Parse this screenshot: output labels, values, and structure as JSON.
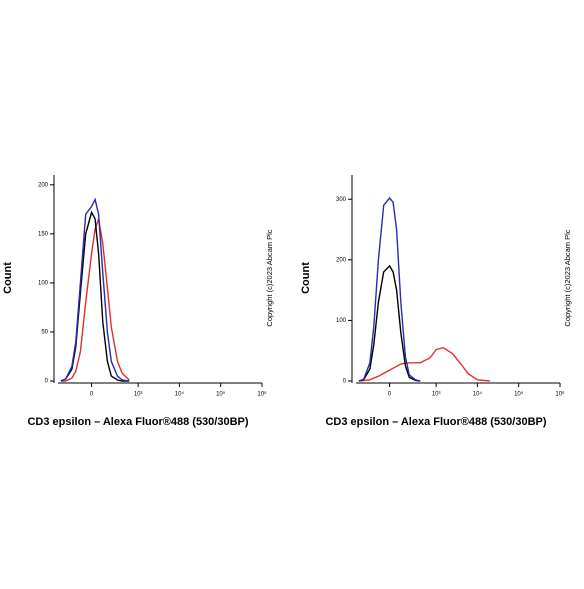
{
  "chart_data": [
    {
      "type": "line",
      "y_label": "Count",
      "x_label": "CD3 epsilon – Alexa Fluor®488 (530/30BP)",
      "annotation": "Copyright (c)2023 Abcam Plc",
      "xlim": [
        -600,
        1000000
      ],
      "ylim": [
        0,
        210
      ],
      "xticks": [
        0,
        {
          "value": 1000,
          "label": "10³"
        },
        {
          "value": 10000,
          "label": "10⁴"
        },
        {
          "value": 100000,
          "label": "10⁵"
        },
        {
          "value": 1000000,
          "label": "10⁶"
        }
      ],
      "yticks": [
        0,
        50,
        100,
        150,
        200
      ],
      "series": [
        {
          "color": "#e03030",
          "x": [
            -400,
            -300,
            -200,
            -150,
            -100,
            -50,
            0,
            30,
            60,
            100,
            150,
            200,
            300,
            400,
            600
          ],
          "values": [
            0,
            0,
            3,
            10,
            30,
            80,
            130,
            155,
            165,
            140,
            95,
            55,
            20,
            8,
            1
          ]
        },
        {
          "color": "#000000",
          "x": [
            -400,
            -300,
            -200,
            -150,
            -100,
            -50,
            0,
            30,
            60,
            100,
            150,
            200,
            300,
            400,
            600
          ],
          "values": [
            0,
            2,
            12,
            35,
            90,
            150,
            172,
            165,
            130,
            60,
            20,
            5,
            1,
            0,
            0
          ]
        },
        {
          "color": "#2a2ab4",
          "x": [
            -400,
            -300,
            -200,
            -150,
            -100,
            -50,
            0,
            30,
            60,
            100,
            150,
            200,
            300,
            400,
            600
          ],
          "values": [
            0,
            2,
            15,
            40,
            100,
            170,
            178,
            185,
            170,
            110,
            50,
            20,
            5,
            1,
            0
          ]
        }
      ]
    },
    {
      "type": "line",
      "y_label": "Count",
      "x_label": "CD3 epsilon – Alexa Fluor®488 (530/30BP)",
      "annotation": "Copyright (c)2023 Abcam Plc",
      "xlim": [
        -600,
        1000000
      ],
      "ylim": [
        0,
        340
      ],
      "xticks": [
        0,
        {
          "value": 1000,
          "label": "10³"
        },
        {
          "value": 10000,
          "label": "10⁴"
        },
        {
          "value": 100000,
          "label": "10⁵"
        },
        {
          "value": 1000000,
          "label": "10⁶"
        }
      ],
      "yticks": [
        0,
        100,
        200,
        300
      ],
      "series": [
        {
          "color": "#e03030",
          "x": [
            -400,
            -200,
            -100,
            0,
            100,
            200,
            400,
            700,
            1000,
            1500,
            2500,
            4000,
            6000,
            10000,
            20000
          ],
          "values": [
            0,
            2,
            8,
            18,
            28,
            30,
            30,
            38,
            52,
            55,
            45,
            28,
            12,
            2,
            0
          ]
        },
        {
          "color": "#000000",
          "x": [
            -400,
            -300,
            -200,
            -150,
            -100,
            -50,
            0,
            30,
            60,
            100,
            150,
            200,
            300,
            400
          ],
          "values": [
            0,
            2,
            20,
            60,
            130,
            180,
            190,
            180,
            150,
            80,
            25,
            6,
            1,
            0
          ]
        },
        {
          "color": "#2a2ab4",
          "x": [
            -400,
            -300,
            -200,
            -150,
            -100,
            -50,
            0,
            30,
            60,
            100,
            150,
            200,
            300,
            400
          ],
          "values": [
            0,
            3,
            30,
            90,
            200,
            290,
            302,
            295,
            250,
            130,
            40,
            10,
            2,
            0
          ]
        }
      ]
    }
  ]
}
